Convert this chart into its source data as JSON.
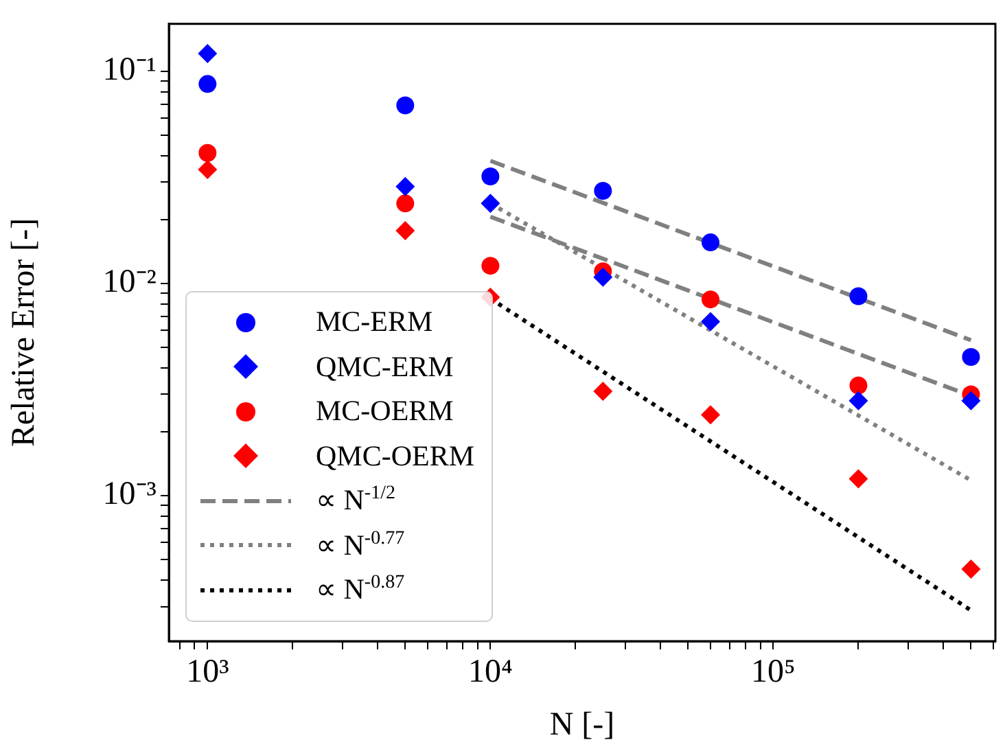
{
  "chart_data": {
    "type": "scatter",
    "xlabel": "N [-]",
    "ylabel": "Relative Error [-]",
    "log": "xy",
    "legend": "bottom left",
    "x": [
      1000,
      5000,
      10000,
      25000,
      60000,
      200000,
      500000
    ],
    "xlim": [
      730,
      610000
    ],
    "ylim": [
      0.000206,
      0.167
    ],
    "xticks": [
      {
        "value": 800,
        "label": null
      },
      {
        "value": 900,
        "label": null
      },
      {
        "value": 1000,
        "label": "10³"
      },
      {
        "value": 2000,
        "label": null
      },
      {
        "value": 3000,
        "label": null
      },
      {
        "value": 4000,
        "label": null
      },
      {
        "value": 5000,
        "label": null
      },
      {
        "value": 6000,
        "label": null
      },
      {
        "value": 7000,
        "label": null
      },
      {
        "value": 8000,
        "label": null
      },
      {
        "value": 9000,
        "label": null
      },
      {
        "value": 10000,
        "label": "10⁴"
      },
      {
        "value": 20000,
        "label": null
      },
      {
        "value": 30000,
        "label": null
      },
      {
        "value": 40000,
        "label": null
      },
      {
        "value": 50000,
        "label": null
      },
      {
        "value": 60000,
        "label": null
      },
      {
        "value": 70000,
        "label": null
      },
      {
        "value": 80000,
        "label": null
      },
      {
        "value": 90000,
        "label": null
      },
      {
        "value": 100000,
        "label": "10⁵"
      },
      {
        "value": 200000,
        "label": null
      },
      {
        "value": 300000,
        "label": null
      },
      {
        "value": 400000,
        "label": null
      },
      {
        "value": 500000,
        "label": null
      },
      {
        "value": 600000,
        "label": null
      }
    ],
    "yticks": [
      {
        "value": 0.0003,
        "label": null
      },
      {
        "value": 0.0004,
        "label": null
      },
      {
        "value": 0.0005,
        "label": null
      },
      {
        "value": 0.0006,
        "label": null
      },
      {
        "value": 0.0007,
        "label": null
      },
      {
        "value": 0.0008,
        "label": null
      },
      {
        "value": 0.0009,
        "label": null
      },
      {
        "value": 0.001,
        "label": "10⁻³"
      },
      {
        "value": 0.002,
        "label": null
      },
      {
        "value": 0.003,
        "label": null
      },
      {
        "value": 0.004,
        "label": null
      },
      {
        "value": 0.005,
        "label": null
      },
      {
        "value": 0.006,
        "label": null
      },
      {
        "value": 0.007,
        "label": null
      },
      {
        "value": 0.008,
        "label": null
      },
      {
        "value": 0.009,
        "label": null
      },
      {
        "value": 0.01,
        "label": "10⁻²"
      },
      {
        "value": 0.02,
        "label": null
      },
      {
        "value": 0.03,
        "label": null
      },
      {
        "value": 0.04,
        "label": null
      },
      {
        "value": 0.05,
        "label": null
      },
      {
        "value": 0.06,
        "label": null
      },
      {
        "value": 0.07,
        "label": null
      },
      {
        "value": 0.08,
        "label": null
      },
      {
        "value": 0.09,
        "label": null
      },
      {
        "value": 0.1,
        "label": "10⁻¹"
      }
    ],
    "series": [
      {
        "name": "MC-ERM",
        "type": "scatter",
        "marker": "circle",
        "color": "#0000ff",
        "values": [
          0.087,
          0.069,
          0.0319,
          0.0273,
          0.0156,
          0.0087,
          0.0045
        ]
      },
      {
        "name": "QMC-ERM",
        "type": "scatter",
        "marker": "diamond",
        "color": "#0000ff",
        "values": [
          0.121,
          0.0286,
          0.0238,
          0.0107,
          0.0066,
          0.0028,
          0.0028
        ]
      },
      {
        "name": "MC-OERM",
        "type": "scatter",
        "marker": "circle",
        "color": "#ff0000",
        "values": [
          0.0412,
          0.0238,
          0.0121,
          0.0114,
          0.0084,
          0.0033,
          0.003
        ]
      },
      {
        "name": "QMC-OERM",
        "type": "scatter",
        "marker": "diamond",
        "color": "#ff0000",
        "values": [
          0.0344,
          0.0177,
          0.0086,
          0.0031,
          0.0024,
          0.0012,
          0.00045
        ]
      },
      {
        "name": "∝ N$^{-1/2}$",
        "type": "line",
        "marker": "none",
        "line_style": "dashed",
        "color": "#808080",
        "values": [
          null,
          null,
          0.0378,
          null,
          null,
          null,
          0.0054
        ]
      },
      {
        "type": "line",
        "marker": "none",
        "line_style": "dashed",
        "color": "#808080",
        "values": [
          null,
          null,
          0.0206,
          null,
          null,
          null,
          0.00295
        ]
      },
      {
        "name": "∝ N$^{-0.77}$",
        "type": "line",
        "marker": "none",
        "line_style": "dotted",
        "color": "#808080",
        "values": [
          null,
          null,
          0.0238,
          null,
          null,
          null,
          0.00118
        ]
      },
      {
        "name": "∝ N$^{-0.87}$",
        "type": "line",
        "marker": "none",
        "line_style": "dotted",
        "color": "#000000",
        "values": [
          null,
          null,
          0.00848,
          null,
          null,
          null,
          0.000288
        ]
      }
    ]
  }
}
